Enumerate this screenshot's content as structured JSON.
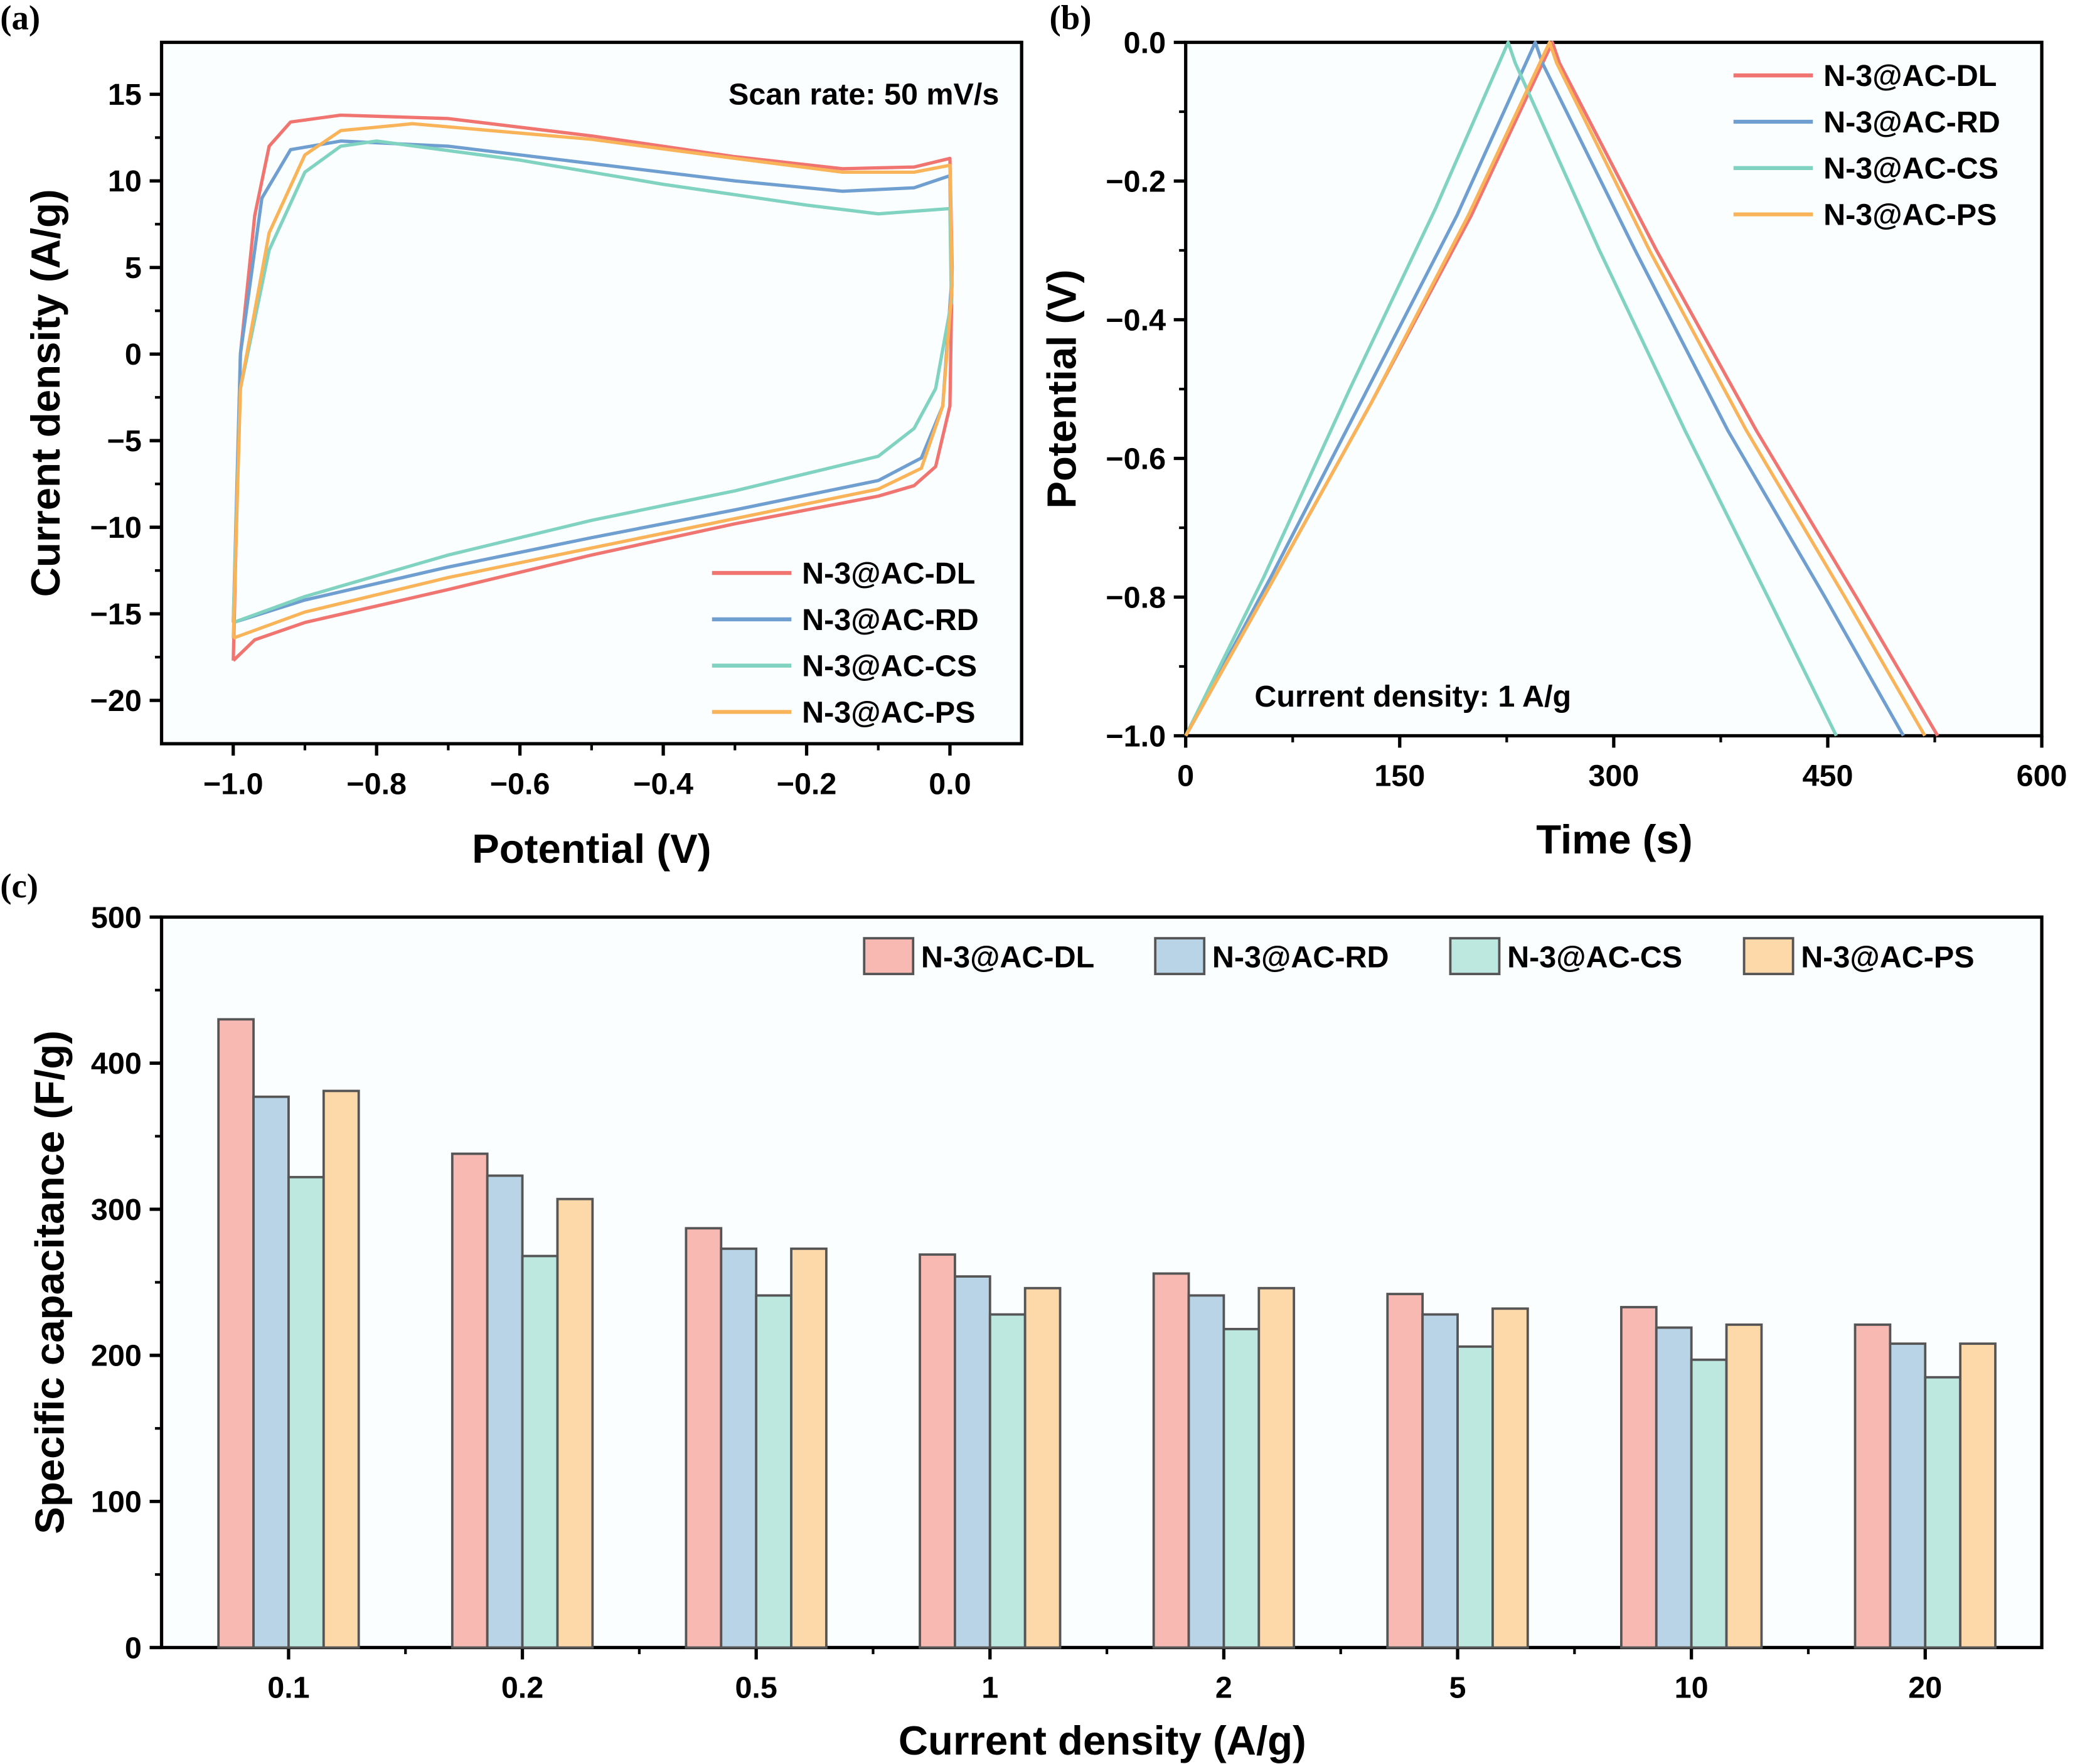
{
  "chart_data": [
    {
      "panel_label": "(a)",
      "type": "line",
      "xlabel": "Potential (V)",
      "ylabel": "Current density (A/g)",
      "xlim": [
        -1.1,
        0.1
      ],
      "ylim": [
        -22.5,
        18
      ],
      "xticks": [
        -1.0,
        -0.8,
        -0.6,
        -0.4,
        -0.2,
        0.0
      ],
      "xtick_labels": [
        "−1.0",
        "−0.8",
        "−0.6",
        "−0.4",
        "−0.2",
        "0.0"
      ],
      "yticks": [
        15,
        10,
        5,
        0,
        -5,
        -10,
        -15,
        -20
      ],
      "ytick_labels": [
        "15",
        "10",
        "5",
        "0",
        "−5",
        "−10",
        "−15",
        "−20"
      ],
      "annotation": "Scan rate: 50 mV/s",
      "legend_position": "bottom-right",
      "grid": false,
      "series": [
        {
          "name": "N-3@AC-DL",
          "color": "#f07470",
          "points": [
            [
              -1,
              -17.7
            ],
            [
              -0.99,
              0
            ],
            [
              -0.97,
              8
            ],
            [
              -0.95,
              12
            ],
            [
              -0.92,
              13.4
            ],
            [
              -0.85,
              13.8
            ],
            [
              -0.7,
              13.6
            ],
            [
              -0.5,
              12.6
            ],
            [
              -0.3,
              11.4
            ],
            [
              -0.15,
              10.7
            ],
            [
              -0.05,
              10.8
            ],
            [
              0,
              11.3
            ],
            [
              0.003,
              5
            ],
            [
              0,
              -3
            ],
            [
              -0.02,
              -6.5
            ],
            [
              -0.05,
              -7.6
            ],
            [
              -0.1,
              -8.2
            ],
            [
              -0.3,
              -9.8
            ],
            [
              -0.5,
              -11.6
            ],
            [
              -0.7,
              -13.6
            ],
            [
              -0.9,
              -15.5
            ],
            [
              -0.97,
              -16.5
            ],
            [
              -1,
              -17.7
            ]
          ]
        },
        {
          "name": "N-3@AC-RD",
          "color": "#6f9fd0",
          "points": [
            [
              -1,
              -15.5
            ],
            [
              -0.99,
              0
            ],
            [
              -0.96,
              9
            ],
            [
              -0.92,
              11.8
            ],
            [
              -0.85,
              12.3
            ],
            [
              -0.7,
              12.0
            ],
            [
              -0.5,
              11.0
            ],
            [
              -0.3,
              10
            ],
            [
              -0.15,
              9.4
            ],
            [
              -0.05,
              9.6
            ],
            [
              0,
              10.3
            ],
            [
              0.002,
              4
            ],
            [
              -0.01,
              -3
            ],
            [
              -0.04,
              -6
            ],
            [
              -0.1,
              -7.3
            ],
            [
              -0.3,
              -9
            ],
            [
              -0.5,
              -10.6
            ],
            [
              -0.7,
              -12.3
            ],
            [
              -0.9,
              -14.2
            ],
            [
              -1,
              -15.5
            ]
          ]
        },
        {
          "name": "N-3@AC-CS",
          "color": "#7fd3c0",
          "points": [
            [
              -1,
              -15.5
            ],
            [
              -0.99,
              -2
            ],
            [
              -0.95,
              6
            ],
            [
              -0.9,
              10.5
            ],
            [
              -0.85,
              12
            ],
            [
              -0.8,
              12.3
            ],
            [
              -0.6,
              11.2
            ],
            [
              -0.4,
              9.8
            ],
            [
              -0.2,
              8.6
            ],
            [
              -0.1,
              8.1
            ],
            [
              0,
              8.4
            ],
            [
              0.002,
              3
            ],
            [
              -0.02,
              -2
            ],
            [
              -0.05,
              -4.3
            ],
            [
              -0.1,
              -5.9
            ],
            [
              -0.3,
              -7.9
            ],
            [
              -0.5,
              -9.6
            ],
            [
              -0.7,
              -11.6
            ],
            [
              -0.9,
              -14
            ],
            [
              -1,
              -15.5
            ]
          ]
        },
        {
          "name": "N-3@AC-PS",
          "color": "#f9b45a",
          "points": [
            [
              -1,
              -16.4
            ],
            [
              -0.99,
              -2
            ],
            [
              -0.95,
              7
            ],
            [
              -0.9,
              11.5
            ],
            [
              -0.85,
              12.9
            ],
            [
              -0.75,
              13.3
            ],
            [
              -0.5,
              12.4
            ],
            [
              -0.3,
              11.3
            ],
            [
              -0.15,
              10.5
            ],
            [
              -0.05,
              10.5
            ],
            [
              0,
              10.9
            ],
            [
              0.003,
              4
            ],
            [
              -0.01,
              -3
            ],
            [
              -0.04,
              -6.6
            ],
            [
              -0.1,
              -7.8
            ],
            [
              -0.3,
              -9.5
            ],
            [
              -0.5,
              -11.2
            ],
            [
              -0.7,
              -12.9
            ],
            [
              -0.9,
              -14.9
            ],
            [
              -1,
              -16.4
            ]
          ]
        }
      ]
    },
    {
      "panel_label": "(b)",
      "type": "line",
      "xlabel": "Time (s)",
      "ylabel": "Potential (V)",
      "xlim": [
        0,
        600
      ],
      "ylim": [
        -1.0,
        0.0
      ],
      "xticks": [
        0,
        150,
        300,
        450,
        600
      ],
      "xtick_labels": [
        "0",
        "150",
        "300",
        "450",
        "600"
      ],
      "yticks": [
        0.0,
        -0.2,
        -0.4,
        -0.6,
        -0.8,
        -1.0
      ],
      "ytick_labels": [
        "0.0",
        "−0.2",
        "−0.4",
        "−0.6",
        "−0.8",
        "−1.0"
      ],
      "annotation": "Current density: 1 A/g",
      "legend_position": "top-right",
      "grid": false,
      "series": [
        {
          "name": "N-3@AC-DL",
          "color": "#f07470",
          "points": [
            [
              0,
              -1
            ],
            [
              60,
              -0.78
            ],
            [
              130,
              -0.52
            ],
            [
              200,
              -0.25
            ],
            [
              257,
              0
            ],
            [
              262,
              -0.03
            ],
            [
              330,
              -0.3
            ],
            [
              400,
              -0.56
            ],
            [
              470,
              -0.8
            ],
            [
              527,
              -1
            ]
          ]
        },
        {
          "name": "N-3@AC-RD",
          "color": "#6f9fd0",
          "points": [
            [
              0,
              -1
            ],
            [
              60,
              -0.77
            ],
            [
              125,
              -0.51
            ],
            [
              190,
              -0.25
            ],
            [
              245,
              0
            ],
            [
              250,
              -0.03
            ],
            [
              315,
              -0.3
            ],
            [
              380,
              -0.56
            ],
            [
              448,
              -0.8
            ],
            [
              503,
              -1
            ]
          ]
        },
        {
          "name": "N-3@AC-CS",
          "color": "#7fd3c0",
          "points": [
            [
              0,
              -1
            ],
            [
              55,
              -0.77
            ],
            [
              115,
              -0.5
            ],
            [
              175,
              -0.24
            ],
            [
              226,
              0
            ],
            [
              231,
              -0.03
            ],
            [
              290,
              -0.3
            ],
            [
              350,
              -0.56
            ],
            [
              408,
              -0.8
            ],
            [
              456,
              -1
            ]
          ]
        },
        {
          "name": "N-3@AC-PS",
          "color": "#f9b45a",
          "points": [
            [
              0,
              -1
            ],
            [
              60,
              -0.78
            ],
            [
              130,
              -0.52
            ],
            [
              198,
              -0.25
            ],
            [
              255,
              0
            ],
            [
              260,
              -0.03
            ],
            [
              325,
              -0.3
            ],
            [
              393,
              -0.56
            ],
            [
              462,
              -0.8
            ],
            [
              518,
              -1
            ]
          ]
        }
      ]
    },
    {
      "panel_label": "(c)",
      "type": "bar",
      "xlabel": "Current density (A/g)",
      "ylabel": "Specific capacitance (F/g)",
      "ylim": [
        0,
        500
      ],
      "yticks": [
        0,
        100,
        200,
        300,
        400,
        500
      ],
      "ytick_labels": [
        "0",
        "100",
        "200",
        "300",
        "400",
        "500"
      ],
      "categories": [
        "0.1",
        "0.2",
        "0.5",
        "1",
        "2",
        "5",
        "10",
        "20"
      ],
      "legend_position": "top-right",
      "grid": false,
      "series": [
        {
          "name": "N-3@AC-DL",
          "color": "#f9b9b3",
          "values": [
            430,
            338,
            287,
            269,
            256,
            242,
            233,
            221
          ]
        },
        {
          "name": "N-3@AC-RD",
          "color": "#b8d4e6",
          "values": [
            377,
            323,
            273,
            254,
            241,
            228,
            219,
            208
          ]
        },
        {
          "name": "N-3@AC-CS",
          "color": "#bce8e0",
          "values": [
            322,
            268,
            241,
            228,
            218,
            206,
            197,
            185
          ]
        },
        {
          "name": "N-3@AC-PS",
          "color": "#fdd9a9",
          "values": [
            381,
            307,
            273,
            246,
            246,
            232,
            221,
            208
          ]
        }
      ]
    }
  ]
}
